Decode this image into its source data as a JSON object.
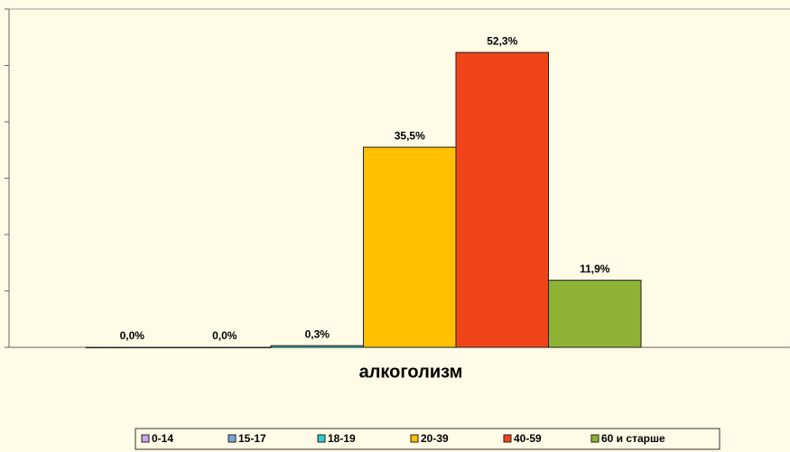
{
  "chart_data": {
    "type": "bar",
    "categories": [
      "алкоголизм"
    ],
    "series": [
      {
        "name": "0-14",
        "color": "#c9a8e8",
        "values": [
          0.0
        ],
        "value_labels": [
          "0,0%"
        ]
      },
      {
        "name": "15-17",
        "color": "#7aa6d8",
        "values": [
          0.0
        ],
        "value_labels": [
          "0,0%"
        ]
      },
      {
        "name": "18-19",
        "color": "#33cccc",
        "values": [
          0.3
        ],
        "value_labels": [
          "0,3%"
        ]
      },
      {
        "name": "20-39",
        "color": "#ffc000",
        "values": [
          35.5
        ],
        "value_labels": [
          "35,5%"
        ]
      },
      {
        "name": "40-59",
        "color": "#f04418",
        "values": [
          52.3
        ],
        "value_labels": [
          "52,3%"
        ]
      },
      {
        "name": "60 и старше",
        "color": "#8db234",
        "values": [
          11.9
        ],
        "value_labels": [
          "11,9%"
        ]
      }
    ],
    "ylim": [
      0,
      60
    ],
    "yticks": [
      0,
      10,
      20,
      30,
      40,
      50,
      60
    ],
    "legend": "bottom"
  }
}
